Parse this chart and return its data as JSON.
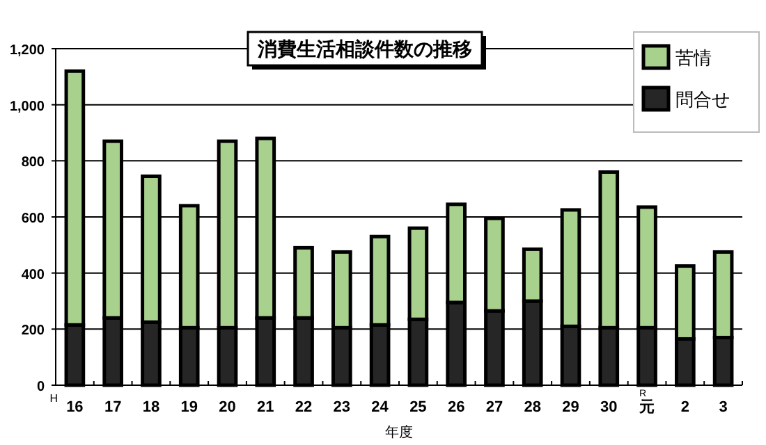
{
  "chart_data": {
    "type": "bar",
    "title": "消費生活相談件数の推移",
    "xlabel": "年度",
    "categories": [
      "16",
      "17",
      "18",
      "19",
      "20",
      "21",
      "22",
      "23",
      "24",
      "25",
      "26",
      "27",
      "28",
      "29",
      "30",
      "元",
      "2",
      "3"
    ],
    "stacked": true,
    "series": [
      {
        "name": "問合せ",
        "color": "#262626",
        "values": [
          215,
          240,
          225,
          205,
          205,
          240,
          240,
          205,
          215,
          235,
          295,
          265,
          300,
          210,
          205,
          205,
          165,
          170
        ]
      },
      {
        "name": "苦情",
        "color": "#a9d18e",
        "values": [
          905,
          630,
          520,
          435,
          665,
          640,
          250,
          270,
          315,
          325,
          350,
          330,
          185,
          415,
          555,
          430,
          260,
          305
        ]
      }
    ],
    "ylim": [
      0,
      1200
    ],
    "yticks": [
      0,
      200,
      400,
      600,
      800,
      {
        "value": 1000,
        "label": "1,000"
      },
      {
        "value": 1200,
        "label": "1,200"
      }
    ],
    "grid": "y",
    "legend": "top right",
    "annotations": [
      "H",
      "R"
    ]
  }
}
